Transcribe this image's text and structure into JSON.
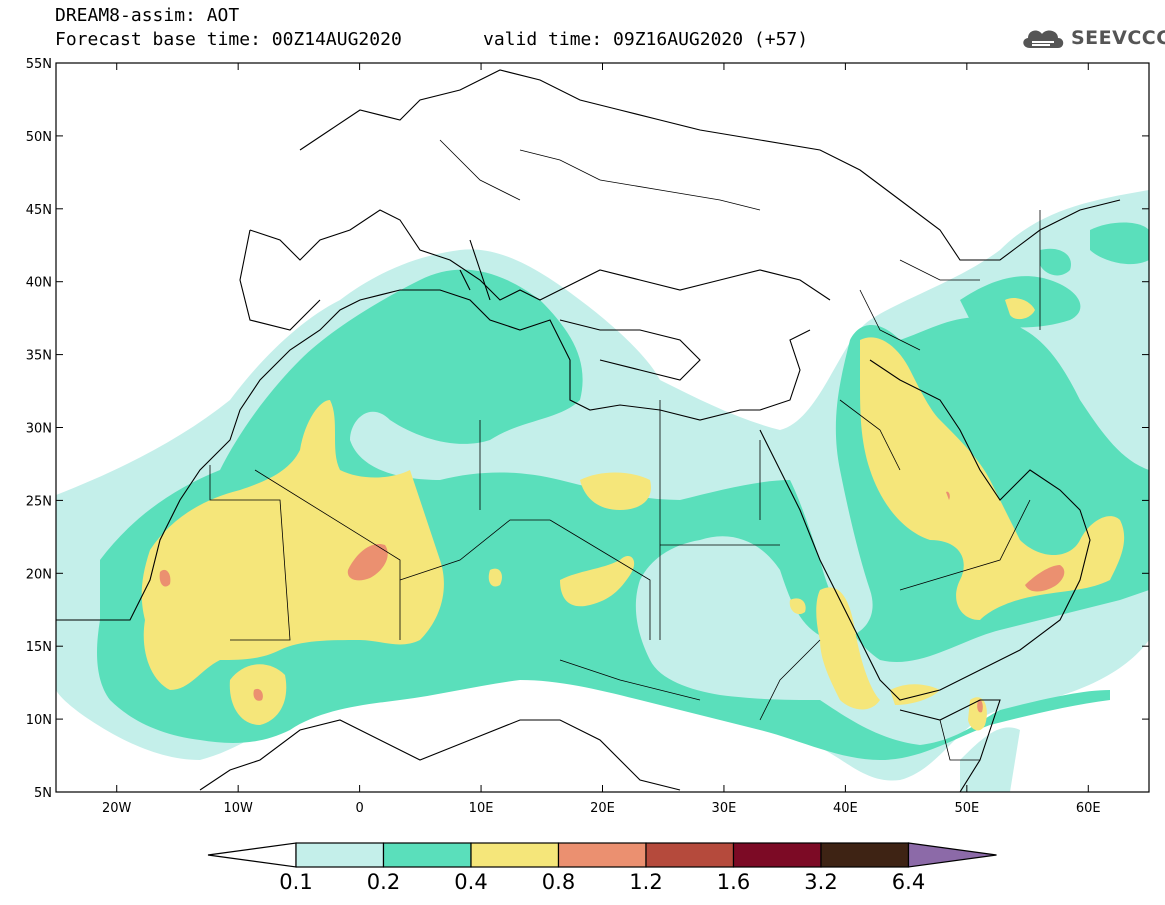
{
  "header": {
    "model_title": "DREAM8-assim: AOT",
    "base_time": "Forecast base time: 00Z14AUG2020",
    "valid_time": "valid time: 09Z16AUG2020 (+57)"
  },
  "logo": {
    "name": "SEEVCCC",
    "icon": "cloud-icon"
  },
  "map": {
    "lat_labels": [
      "55N",
      "50N",
      "45N",
      "40N",
      "35N",
      "30N",
      "25N",
      "20N",
      "15N",
      "10N",
      "5N"
    ],
    "lon_labels": [
      "20W",
      "10W",
      "0",
      "10E",
      "20E",
      "30E",
      "40E",
      "50E",
      "60E"
    ],
    "extent": {
      "lon": [
        -25,
        65
      ],
      "lat": [
        5,
        55
      ]
    }
  },
  "colorbar": {
    "labels": [
      "0.1",
      "0.2",
      "0.4",
      "0.8",
      "1.2",
      "1.6",
      "3.2",
      "6.4"
    ],
    "colors": [
      "#ffffff",
      "#c4efea",
      "#5adfbb",
      "#f5e67a",
      "#eb9070",
      "#b54a3c",
      "#7c0a25",
      "#3e2314",
      "#8c6aa8"
    ]
  },
  "colors": {
    "level_0_1": "#c4efea",
    "level_0_2": "#5adfbb",
    "level_0_4": "#f5e67a",
    "level_0_8": "#eb9070"
  }
}
